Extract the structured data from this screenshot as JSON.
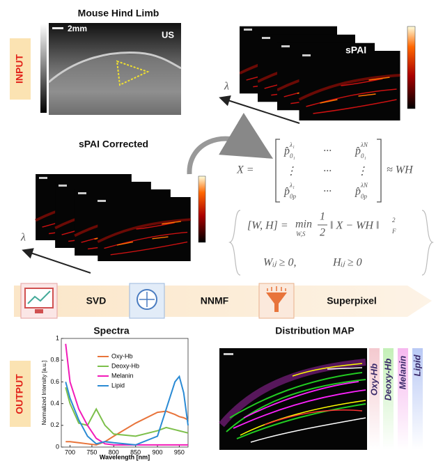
{
  "input_label": "INPUT",
  "output_label": "OUTPUT",
  "us_panel": {
    "title": "Mouse Hind Limb",
    "scale": "2mm",
    "label": "US"
  },
  "spai": {
    "label": "sPAI",
    "axis": "λ"
  },
  "corrected": {
    "title": "sPAI Corrected",
    "axis": "λ"
  },
  "matrix_eq": {
    "lhs": "X =",
    "rhs": "≈ WH",
    "rows": [
      [
        {
          "base": "p̂",
          "sub": "0₁",
          "sup": "λ₁"
        },
        "···",
        {
          "base": "p̂",
          "sub": "0₁",
          "sup": "λN"
        }
      ],
      [
        "⋮",
        "···",
        "⋮"
      ],
      [
        {
          "base": "p̂",
          "sub": "0p",
          "sup": "λ₁"
        },
        "···",
        {
          "base": "p̂",
          "sub": "0p",
          "sup": "λN"
        }
      ]
    ]
  },
  "opt_eq": {
    "lhs": "[W, H] =",
    "op": "min",
    "op_sub": "W,S",
    "num": "1",
    "den": "2",
    "norm": "‖ X − WH ‖",
    "norm_sub": "F",
    "norm_sup": "2",
    "constraints": [
      "Wᵢⱼ ≥ 0,",
      "Hᵢⱼ ≥ 0"
    ]
  },
  "pipeline": {
    "steps": [
      "SVD",
      "NNMF",
      "Superpixel"
    ]
  },
  "spectra": {
    "type": "line",
    "title": "Spectra",
    "xlabel": "Wavelength [nm]",
    "ylabel": "Normalized Intensity [a.u.]",
    "x": [
      690,
      700,
      720,
      740,
      760,
      780,
      800,
      850,
      900,
      920,
      940,
      950,
      960,
      970
    ],
    "xlim": [
      680,
      970
    ],
    "ylim": [
      0,
      1
    ],
    "xticks": [
      700,
      750,
      800,
      850,
      900,
      950
    ],
    "yticks": [
      0,
      0.2,
      0.4,
      0.6,
      0.8,
      1
    ],
    "series": [
      {
        "name": "Oxy-Hb",
        "color": "#e8743b",
        "values": [
          0.05,
          0.05,
          0.04,
          0.03,
          0.02,
          0.05,
          0.1,
          0.22,
          0.32,
          0.33,
          0.3,
          0.28,
          0.27,
          0.25
        ]
      },
      {
        "name": "Deoxy-Hb",
        "color": "#7cbf4a",
        "values": [
          0.55,
          0.4,
          0.22,
          0.2,
          0.35,
          0.2,
          0.12,
          0.1,
          0.15,
          0.18,
          0.16,
          0.15,
          0.14,
          0.13
        ]
      },
      {
        "name": "Melanin",
        "color": "#f21ab8",
        "values": [
          0.95,
          0.6,
          0.35,
          0.2,
          0.08,
          0.03,
          0.02,
          0.02,
          0.02,
          0.02,
          0.02,
          0.02,
          0.02,
          0.02
        ]
      },
      {
        "name": "Lipid",
        "color": "#2a8ad4",
        "values": [
          0.6,
          0.45,
          0.25,
          0.1,
          0.03,
          0.05,
          0.04,
          0.02,
          0.1,
          0.35,
          0.6,
          0.65,
          0.5,
          0.2
        ]
      }
    ]
  },
  "map": {
    "title": "Distribution MAP",
    "labels": [
      "Oxy-Hb",
      "Deoxy-Hb",
      "Melanin",
      "Lipid"
    ]
  }
}
